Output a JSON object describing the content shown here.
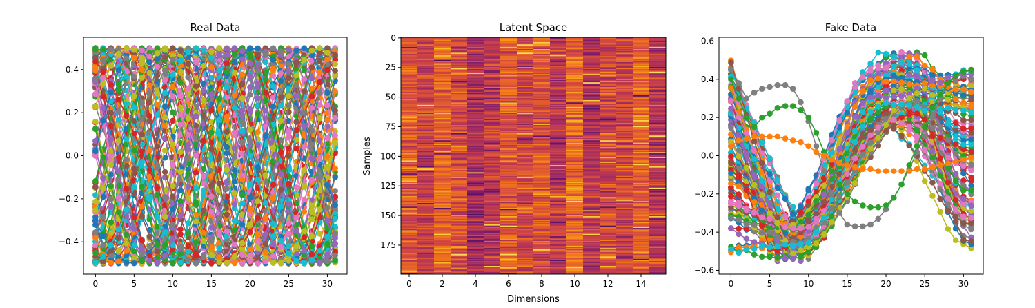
{
  "chart_data": [
    {
      "type": "line",
      "title": "Real Data",
      "xlabel": "",
      "ylabel": "",
      "xlim": [
        -1.55,
        32.55
      ],
      "ylim": [
        -0.55,
        0.55
      ],
      "xticks": [
        0,
        5,
        10,
        15,
        20,
        25,
        30
      ],
      "yticks": [
        -0.4,
        -0.2,
        0.0,
        0.2,
        0.4
      ],
      "ytick_labels": [
        "−0.4",
        "−0.2",
        "0.0",
        "0.2",
        "0.4"
      ],
      "markers": true,
      "grid": false,
      "n_points": 32,
      "value_range": [
        -0.5,
        0.5
      ],
      "sample_series": [
        {
          "values": [
            0.5,
            0.45,
            0.33,
            0.15,
            -0.05,
            -0.24,
            -0.39,
            -0.48,
            -0.5,
            -0.44,
            -0.31,
            -0.13,
            0.07,
            0.26,
            0.41,
            0.49,
            0.49,
            0.42,
            0.28,
            0.1,
            -0.1,
            -0.28,
            -0.42,
            -0.49,
            -0.49,
            -0.41,
            -0.26,
            -0.07,
            0.13,
            0.31,
            0.44,
            0.5
          ]
        },
        {
          "values": [
            -0.5,
            -0.47,
            -0.38,
            -0.23,
            -0.05,
            0.14,
            0.31,
            0.44,
            0.5,
            0.48,
            0.39,
            0.24,
            0.06,
            -0.13,
            -0.3,
            -0.43,
            -0.5,
            -0.48,
            -0.4,
            -0.26,
            -0.08,
            0.11,
            0.29,
            0.42,
            0.49,
            0.49,
            0.41,
            0.27,
            0.09,
            -0.1,
            -0.28,
            -0.41
          ]
        },
        {
          "values": [
            0.0,
            0.19,
            0.35,
            0.46,
            0.5,
            0.46,
            0.35,
            0.19,
            0.0,
            -0.19,
            -0.35,
            -0.46,
            -0.5,
            -0.46,
            -0.35,
            -0.19,
            0.0,
            0.19,
            0.35,
            0.46,
            0.5,
            0.46,
            0.35,
            0.19,
            0.0,
            -0.19,
            -0.35,
            -0.46,
            -0.5,
            -0.46,
            -0.35,
            -0.19
          ]
        },
        {
          "values": [
            0.35,
            0.45,
            0.5,
            0.48,
            0.39,
            0.25,
            0.08,
            -0.1,
            -0.27,
            -0.4,
            -0.48,
            -0.5,
            -0.45,
            -0.35,
            -0.2,
            -0.03,
            0.15,
            0.31,
            0.43,
            0.49,
            0.49,
            0.43,
            0.31,
            0.15,
            -0.03,
            -0.2,
            -0.35,
            -0.45,
            -0.5,
            -0.48,
            -0.4,
            -0.27
          ]
        },
        {
          "values": [
            -0.3,
            -0.1,
            0.12,
            0.31,
            0.45,
            0.5,
            0.45,
            0.31,
            0.12,
            -0.1,
            -0.3,
            -0.44,
            -0.5,
            -0.46,
            -0.33,
            -0.14,
            0.08,
            0.28,
            0.43,
            0.5,
            0.47,
            0.35,
            0.17,
            -0.05,
            -0.26,
            -0.42,
            -0.5,
            -0.48,
            -0.37,
            -0.2,
            0.02,
            0.23
          ]
        }
      ]
    },
    {
      "type": "heatmap",
      "title": "Latent Space",
      "xlabel": "Dimensions",
      "ylabel": "Samples",
      "n_cols": 16,
      "n_rows": 200,
      "xticks": [
        0,
        2,
        4,
        6,
        8,
        10,
        12,
        14
      ],
      "yticks": [
        0,
        25,
        50,
        75,
        100,
        125,
        150,
        175
      ],
      "colormap": "magma",
      "column_means": [
        0.55,
        0.45,
        0.6,
        0.52,
        0.35,
        0.42,
        0.58,
        0.47,
        0.55,
        0.4,
        0.62,
        0.38,
        0.5,
        0.45,
        0.6,
        0.4
      ]
    },
    {
      "type": "line",
      "title": "Fake Data",
      "xlabel": "",
      "ylabel": "",
      "xlim": [
        -1.55,
        32.55
      ],
      "ylim": [
        -0.62,
        0.62
      ],
      "xticks": [
        0,
        5,
        10,
        15,
        20,
        25,
        30
      ],
      "yticks": [
        -0.6,
        -0.4,
        -0.2,
        0.0,
        0.2,
        0.4,
        0.6
      ],
      "ytick_labels": [
        "−0.6",
        "−0.4",
        "−0.2",
        "0.0",
        "0.2",
        "0.4",
        "0.6"
      ],
      "markers": true,
      "grid": false,
      "n_points": 32,
      "sample_series": [
        {
          "name_color": "gray",
          "values": [
            0.45,
            0.38,
            0.3,
            0.33,
            0.35,
            0.36,
            0.37,
            0.37,
            0.35,
            0.28,
            0.18,
            0.05,
            -0.08,
            -0.2,
            -0.3,
            -0.36,
            -0.37,
            -0.37,
            -0.36,
            -0.33,
            -0.28,
            -0.22,
            -0.15,
            -0.07,
            0.02,
            0.1,
            0.2,
            0.3,
            0.38,
            0.42,
            0.44,
            0.45
          ]
        },
        {
          "name_color": "green",
          "values": [
            0.4,
            0.3,
            0.2,
            0.15,
            0.2,
            0.22,
            0.25,
            0.26,
            0.26,
            0.24,
            0.2,
            0.12,
            0.02,
            -0.08,
            -0.15,
            -0.2,
            -0.24,
            -0.26,
            -0.27,
            -0.27,
            -0.26,
            -0.22,
            -0.15,
            -0.05,
            0.05,
            0.15,
            0.25,
            0.32,
            0.38,
            0.42,
            0.44,
            0.45
          ]
        },
        {
          "name_color": "orange",
          "values": [
            0.05,
            0.08,
            0.09,
            0.1,
            0.1,
            0.1,
            0.1,
            0.09,
            0.08,
            0.07,
            0.05,
            0.02,
            0.0,
            -0.02,
            -0.04,
            -0.05,
            -0.06,
            -0.07,
            -0.07,
            -0.08,
            -0.08,
            -0.08,
            -0.08,
            -0.08,
            -0.07,
            -0.07,
            -0.06,
            -0.05,
            -0.04,
            -0.03,
            -0.02,
            -0.01
          ]
        }
      ]
    }
  ]
}
